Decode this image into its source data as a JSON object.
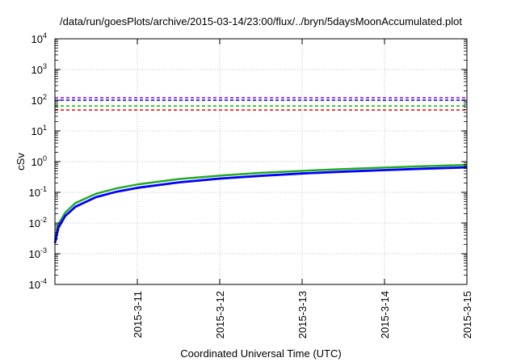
{
  "chart_data": {
    "type": "line",
    "title": "/data/run/goesPlots/archive/2015-03-14/23:00/flux/../bryn/5daysMoonAccumulated.plot",
    "xlabel": "Coordinated Universal Time (UTC)",
    "ylabel": "cSv",
    "yscale": "log",
    "ylim": [
      0.0001,
      10000
    ],
    "xlim": [
      "2015-03-10",
      "2015-03-15"
    ],
    "grid": true,
    "legend": "none",
    "x_ticks": [
      "2015-3-11",
      "2015-3-12",
      "2015-3-13",
      "2015-3-14",
      "2015-3-15"
    ],
    "y_ticks": [
      {
        "value": 0.0001,
        "base": "10",
        "exp": "-4"
      },
      {
        "value": 0.001,
        "base": "10",
        "exp": "-3"
      },
      {
        "value": 0.01,
        "base": "10",
        "exp": "-2"
      },
      {
        "value": 0.1,
        "base": "10",
        "exp": "-1"
      },
      {
        "value": 1,
        "base": "10",
        "exp": "0"
      },
      {
        "value": 10,
        "base": "10",
        "exp": "1"
      },
      {
        "value": 100,
        "base": "10",
        "exp": "2"
      },
      {
        "value": 1000,
        "base": "10",
        "exp": "3"
      },
      {
        "value": 10000,
        "base": "10",
        "exp": "4"
      }
    ],
    "thresholds": [
      {
        "value": 120,
        "color": "#9400d3"
      },
      {
        "value": 100,
        "color": "#0000cc"
      },
      {
        "value": 65,
        "color": "#00bb00"
      },
      {
        "value": 48,
        "color": "#ee0000"
      }
    ],
    "series": [
      {
        "color": "#22aa22",
        "x": [
          "2015-03-10 00:00",
          "2015-03-10 01:00",
          "2015-03-10 03:00",
          "2015-03-10 06:00",
          "2015-03-10 12:00",
          "2015-03-10 18:00",
          "2015-03-11 00:00",
          "2015-03-11 12:00",
          "2015-03-12 00:00",
          "2015-03-12 12:00",
          "2015-03-13 00:00",
          "2015-03-13 12:00",
          "2015-03-14 00:00",
          "2015-03-14 12:00",
          "2015-03-15 00:00"
        ],
        "y": [
          0.0028,
          0.009,
          0.022,
          0.045,
          0.09,
          0.135,
          0.18,
          0.27,
          0.35,
          0.43,
          0.5,
          0.57,
          0.64,
          0.71,
          0.78
        ]
      },
      {
        "color": "#0000ff",
        "x": [
          "2015-03-10 00:00",
          "2015-03-10 01:00",
          "2015-03-10 03:00",
          "2015-03-10 06:00",
          "2015-03-10 12:00",
          "2015-03-10 18:00",
          "2015-03-11 00:00",
          "2015-03-11 12:00",
          "2015-03-12 00:00",
          "2015-03-12 12:00",
          "2015-03-13 00:00",
          "2015-03-13 12:00",
          "2015-03-14 00:00",
          "2015-03-14 12:00",
          "2015-03-15 00:00"
        ],
        "y": [
          0.0022,
          0.007,
          0.017,
          0.034,
          0.07,
          0.105,
          0.14,
          0.21,
          0.28,
          0.345,
          0.41,
          0.47,
          0.53,
          0.59,
          0.65
        ]
      }
    ]
  }
}
